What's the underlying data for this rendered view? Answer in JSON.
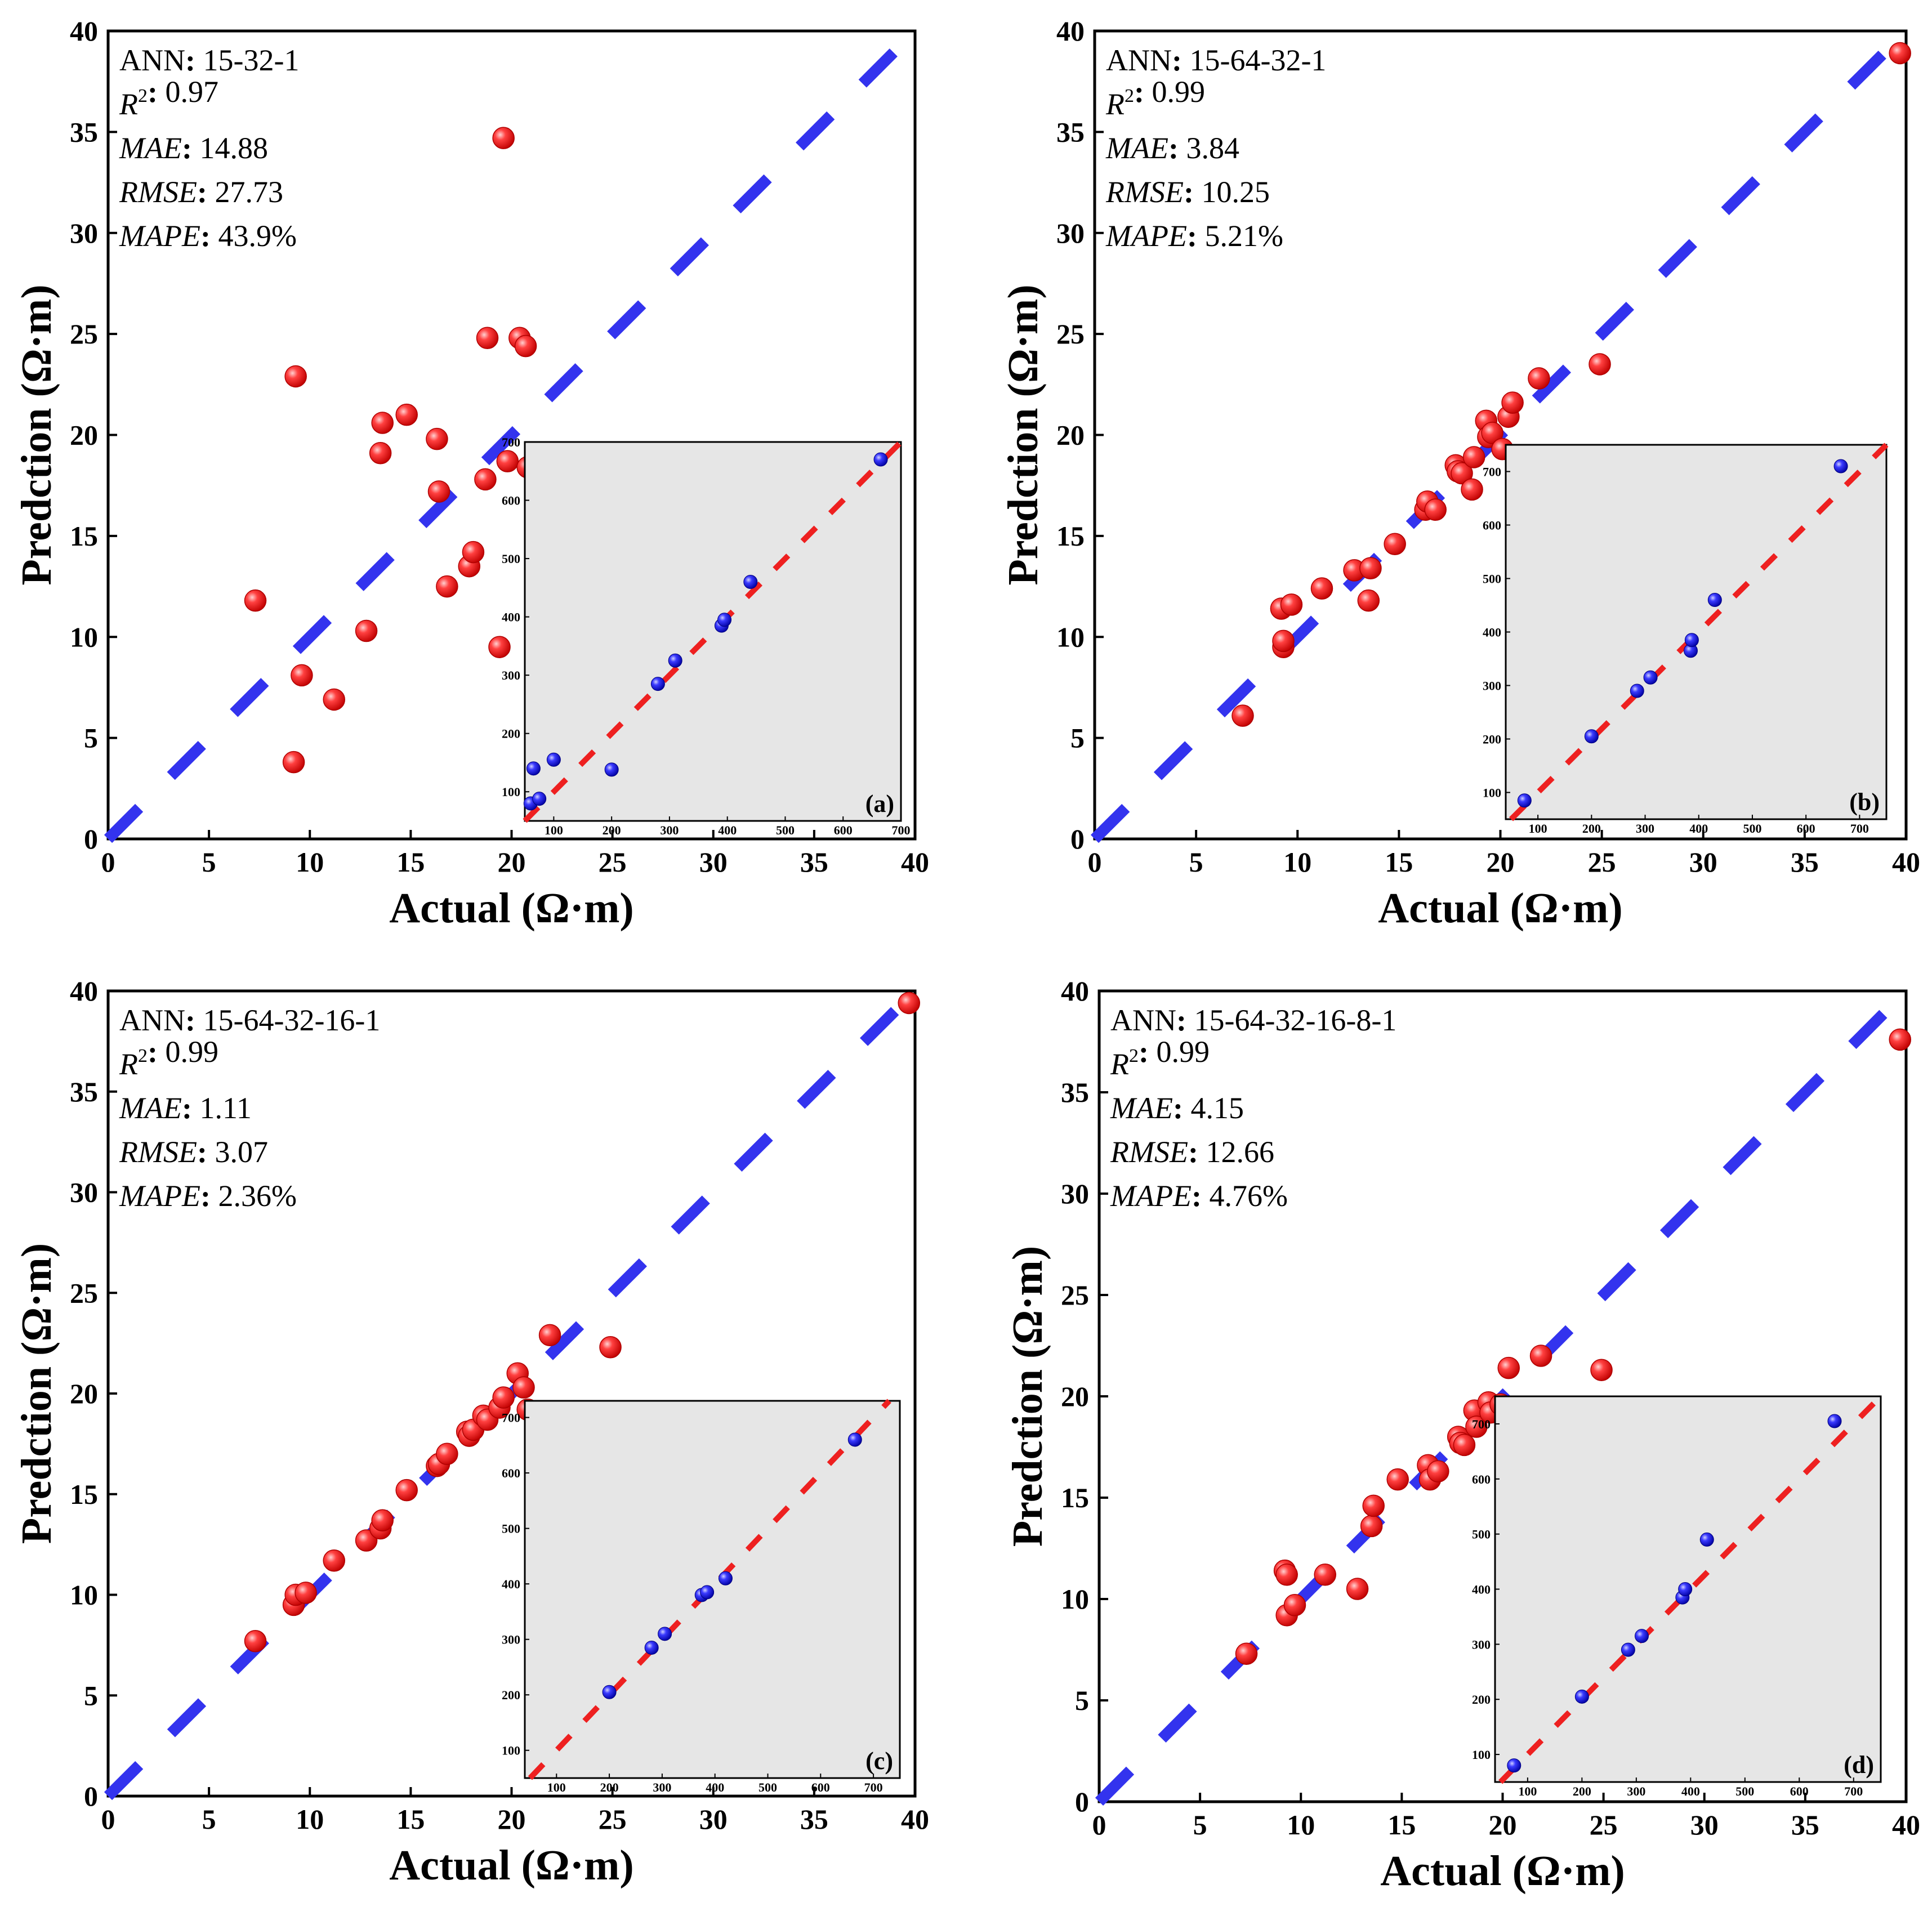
{
  "units": "(Ω·m)",
  "colors": {
    "main_points": "#ff2020",
    "main_line": "#3333ee",
    "inset_points": "#2020ee",
    "inset_line": "#ee2020",
    "inset_bg": "#e6e6e6"
  },
  "chart_data": [
    {
      "type": "scatter",
      "panel": "(a)",
      "xlabel": "Actual (Ω·m)",
      "ylabel": "Predction (Ω·m)",
      "xlim": [
        0,
        40
      ],
      "ylim": [
        0,
        40
      ],
      "xticks": [
        0,
        5,
        10,
        15,
        20,
        25,
        30,
        35,
        40
      ],
      "yticks": [
        0,
        5,
        10,
        15,
        20,
        25,
        30,
        35,
        40
      ],
      "reference_line": "y = x",
      "metrics": {
        "ann_label": "ANN",
        "ann": "15-32-1",
        "r2_label": "R",
        "r2_sup": "2",
        "r2": "0.97",
        "mae_label": "MAE",
        "mae": "14.88",
        "rmse_label": "RMSE",
        "rmse": "27.73",
        "mape_label": "MAPE",
        "mape": "43.9%"
      },
      "x": [
        7.3,
        9.3,
        9.2,
        9.6,
        11.2,
        12.8,
        13.5,
        13.6,
        14.8,
        16.3,
        16.4,
        16.8,
        17.9,
        18.1,
        18.7,
        18.8,
        19.4,
        19.6,
        19.8,
        20.4,
        20.7,
        20.8,
        21.9
      ],
      "y": [
        11.8,
        22.9,
        3.8,
        8.1,
        6.9,
        10.3,
        19.1,
        20.6,
        21.0,
        19.8,
        17.2,
        12.5,
        13.5,
        14.2,
        17.8,
        24.8,
        9.5,
        34.7,
        18.7,
        24.8,
        24.4,
        18.4,
        18.6
      ],
      "inset": {
        "xlim": [
          50,
          700
        ],
        "ylim": [
          50,
          700
        ],
        "xticks": [
          100,
          200,
          300,
          400,
          500,
          600,
          700
        ],
        "yticks": [
          100,
          200,
          300,
          400,
          500,
          600,
          700
        ],
        "x": [
          60,
          75,
          65,
          100,
          200,
          280,
          310,
          390,
          395,
          440,
          665
        ],
        "y": [
          80,
          88,
          140,
          155,
          138,
          285,
          325,
          385,
          395,
          460,
          670
        ]
      }
    },
    {
      "type": "scatter",
      "panel": "(b)",
      "xlabel": "Actual (Ω·m)",
      "ylabel": "Predction (Ω·m)",
      "xlim": [
        0,
        40
      ],
      "ylim": [
        0,
        40
      ],
      "xticks": [
        0,
        5,
        10,
        15,
        20,
        25,
        30,
        35,
        40
      ],
      "yticks": [
        0,
        5,
        10,
        15,
        20,
        25,
        30,
        35,
        40
      ],
      "reference_line": "y = x",
      "metrics": {
        "ann_label": "ANN",
        "ann": "15-64-32-1",
        "r2_label": "R",
        "r2_sup": "2",
        "r2": "0.99",
        "mae_label": "MAE",
        "mae": "3.84",
        "rmse_label": "RMSE",
        "rmse": "10.25",
        "mape_label": "MAPE",
        "mape": "5.21%"
      },
      "x": [
        7.3,
        9.2,
        9.3,
        9.3,
        9.7,
        11.2,
        12.8,
        13.5,
        13.6,
        14.8,
        16.3,
        16.4,
        16.8,
        17.8,
        17.9,
        18.1,
        18.6,
        18.7,
        19.3,
        19.4,
        19.6,
        20.1,
        20.4,
        20.6,
        21.9,
        24.9,
        39.7
      ],
      "y": [
        6.1,
        11.4,
        9.5,
        9.8,
        11.6,
        12.4,
        13.3,
        11.8,
        13.4,
        14.6,
        16.3,
        16.7,
        16.3,
        18.5,
        18.2,
        18.1,
        17.3,
        18.9,
        20.7,
        19.9,
        20.1,
        19.3,
        20.9,
        21.6,
        22.8,
        23.5,
        38.9
      ],
      "inset": {
        "xlim": [
          40,
          750
        ],
        "ylim": [
          50,
          750
        ],
        "xticks": [
          100,
          200,
          300,
          400,
          500,
          600,
          700
        ],
        "yticks": [
          100,
          200,
          300,
          400,
          500,
          600,
          700
        ],
        "x": [
          75,
          200,
          285,
          310,
          385,
          387,
          430,
          665
        ],
        "y": [
          85,
          205,
          290,
          315,
          365,
          385,
          460,
          710
        ]
      }
    },
    {
      "type": "scatter",
      "panel": "(c)",
      "xlabel": "Actual (Ω·m)",
      "ylabel": "Predction (Ω·m)",
      "xlim": [
        0,
        40
      ],
      "ylim": [
        0,
        40
      ],
      "xticks": [
        0,
        5,
        10,
        15,
        20,
        25,
        30,
        35,
        40
      ],
      "yticks": [
        0,
        5,
        10,
        15,
        20,
        25,
        30,
        35,
        40
      ],
      "reference_line": "y = x",
      "metrics": {
        "ann_label": "ANN",
        "ann": "15-64-32-16-1",
        "r2_label": "R",
        "r2_sup": "2",
        "r2": "0.99",
        "mae_label": "MAE",
        "mae": "1.11",
        "rmse_label": "RMSE",
        "rmse": "3.07",
        "mape_label": "MAPE",
        "mape": "2.36%"
      },
      "x": [
        7.3,
        9.2,
        9.3,
        9.8,
        11.2,
        12.8,
        13.5,
        13.6,
        14.8,
        16.3,
        16.4,
        16.8,
        17.8,
        17.9,
        18.1,
        18.6,
        18.8,
        19.4,
        19.6,
        20.3,
        20.6,
        20.8,
        21.9,
        24.9,
        39.7
      ],
      "y": [
        7.7,
        9.5,
        10.0,
        10.1,
        11.7,
        12.7,
        13.3,
        13.7,
        15.2,
        16.4,
        16.5,
        17.0,
        18.1,
        17.9,
        18.2,
        18.9,
        18.7,
        19.3,
        19.8,
        21.0,
        20.3,
        19.2,
        22.9,
        22.3,
        39.4
      ],
      "inset": {
        "xlim": [
          40,
          750
        ],
        "ylim": [
          50,
          730
        ],
        "xticks": [
          100,
          200,
          300,
          400,
          500,
          600,
          700
        ],
        "yticks": [
          100,
          200,
          300,
          400,
          500,
          600,
          700
        ],
        "x": [
          200,
          280,
          305,
          375,
          385,
          420,
          665
        ],
        "y": [
          205,
          285,
          310,
          380,
          385,
          410,
          660
        ]
      }
    },
    {
      "type": "scatter",
      "panel": "(d)",
      "xlabel": "Actual (Ω·m)",
      "ylabel": "Predction (Ω·m)",
      "xlim": [
        0,
        40
      ],
      "ylim": [
        0,
        40
      ],
      "xticks": [
        0,
        5,
        10,
        15,
        20,
        25,
        30,
        35,
        40
      ],
      "yticks": [
        0,
        5,
        10,
        15,
        20,
        25,
        30,
        35,
        40
      ],
      "reference_line": "y = x",
      "metrics": {
        "ann_label": "ANN",
        "ann": "15-64-32-16-8-1",
        "r2_label": "R",
        "r2_sup": "2",
        "r2": "0.99",
        "mae_label": "MAE",
        "mae": "4.15",
        "rmse_label": "RMSE",
        "rmse": "12.66",
        "mape_label": "MAPE",
        "mape": "4.76%"
      },
      "x": [
        7.3,
        9.2,
        9.3,
        9.3,
        9.7,
        11.2,
        12.8,
        13.5,
        13.6,
        14.8,
        16.3,
        16.4,
        16.8,
        17.8,
        17.9,
        18.1,
        18.6,
        18.7,
        19.3,
        19.4,
        19.9,
        20.3,
        20.5,
        20.8,
        21.9,
        24.9,
        39.7
      ],
      "y": [
        7.3,
        11.4,
        11.2,
        9.2,
        9.7,
        11.2,
        10.5,
        13.6,
        14.6,
        15.9,
        16.6,
        15.9,
        16.3,
        18.0,
        17.7,
        17.6,
        19.3,
        18.5,
        19.7,
        19.2,
        19.6,
        21.4,
        19.4,
        19.4,
        22.0,
        21.3,
        37.6
      ],
      "inset": {
        "xlim": [
          40,
          750
        ],
        "ylim": [
          50,
          750
        ],
        "xticks": [
          100,
          200,
          300,
          400,
          500,
          600,
          700
        ],
        "yticks": [
          100,
          200,
          300,
          400,
          500,
          600,
          700
        ],
        "x": [
          75,
          200,
          285,
          310,
          385,
          390,
          430,
          665
        ],
        "y": [
          80,
          205,
          290,
          315,
          385,
          400,
          490,
          705
        ]
      }
    }
  ]
}
